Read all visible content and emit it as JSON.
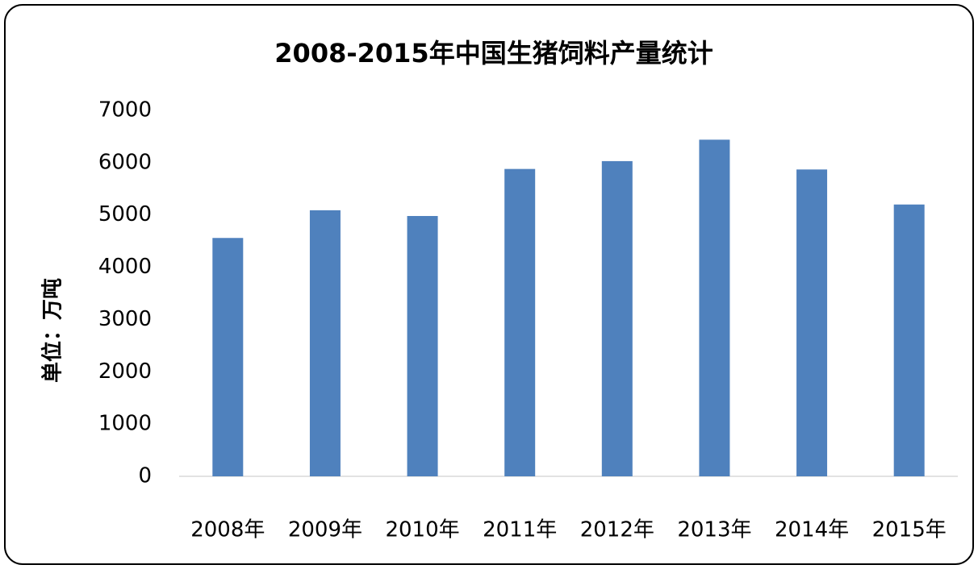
{
  "chart_data": {
    "type": "bar",
    "title": "2008-2015年中国生猪饲料产量统计",
    "y_label": "单位：万吨",
    "categories": [
      "2008年",
      "2009年",
      "2010年",
      "2011年",
      "2012年",
      "2013年",
      "2014年",
      "2015年"
    ],
    "values": [
      4560,
      5090,
      4980,
      5880,
      6030,
      6440,
      5870,
      5200
    ],
    "color": "#4f81bd",
    "ylim": [
      0,
      7000
    ],
    "yticks": [
      0,
      1000,
      2000,
      3000,
      4000,
      5000,
      6000,
      7000
    ],
    "grid": false
  }
}
